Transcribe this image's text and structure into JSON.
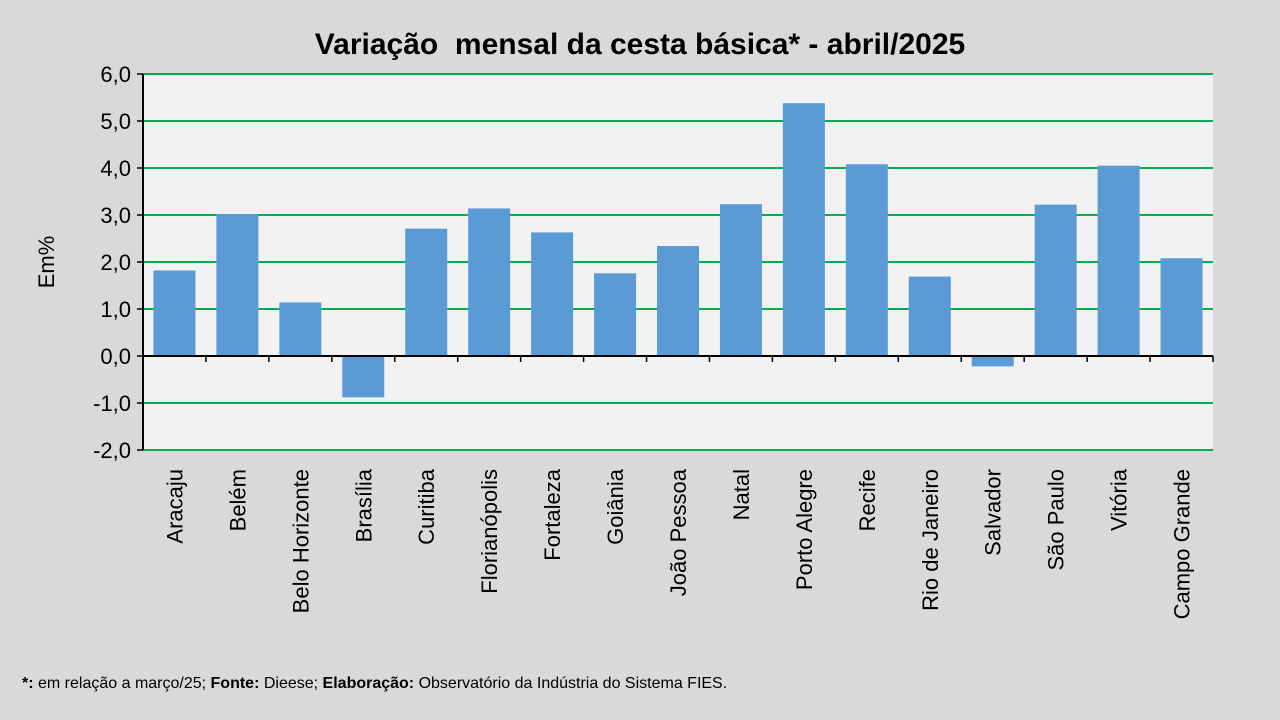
{
  "chart_data": {
    "type": "bar",
    "title": "Variação  mensal da cesta básica* - abril/2025",
    "xlabel": "",
    "ylabel": "Em%",
    "ylim": [
      -2.0,
      6.0
    ],
    "ytick_step": 1.0,
    "yticks": [
      "6,0",
      "5,0",
      "4,0",
      "3,0",
      "2,0",
      "1,0",
      "0,0",
      "-1,0",
      "-2,0"
    ],
    "grid": true,
    "categories": [
      "Aracaju",
      "Belém",
      "Belo Horizonte",
      "Brasília",
      "Curitiba",
      "Florianópolis",
      "Fortaleza",
      "Goiânia",
      "João Pessoa",
      "Natal",
      "Porto Alegre",
      "Recife",
      "Rio de Janeiro",
      "Salvador",
      "São Paulo",
      "Vitória",
      "Campo Grande"
    ],
    "values": [
      1.82,
      3.02,
      1.14,
      -0.88,
      2.71,
      3.14,
      2.63,
      1.76,
      2.34,
      3.23,
      5.38,
      4.08,
      1.69,
      -0.22,
      3.22,
      4.05,
      2.08
    ],
    "colors": {
      "bar": "#5b9bd5",
      "grid": "#00b050",
      "plot_bg": "#f2f2f2",
      "page_bg": "#d9d9d9"
    }
  },
  "footnote": {
    "star_label": "*:",
    "star_text": " em relação a março/25; ",
    "source_label": "Fonte:",
    "source_text": " Dieese; ",
    "credit_label": "Elaboração:",
    "credit_text": " Observatório da Indústria do Sistema FIES."
  }
}
